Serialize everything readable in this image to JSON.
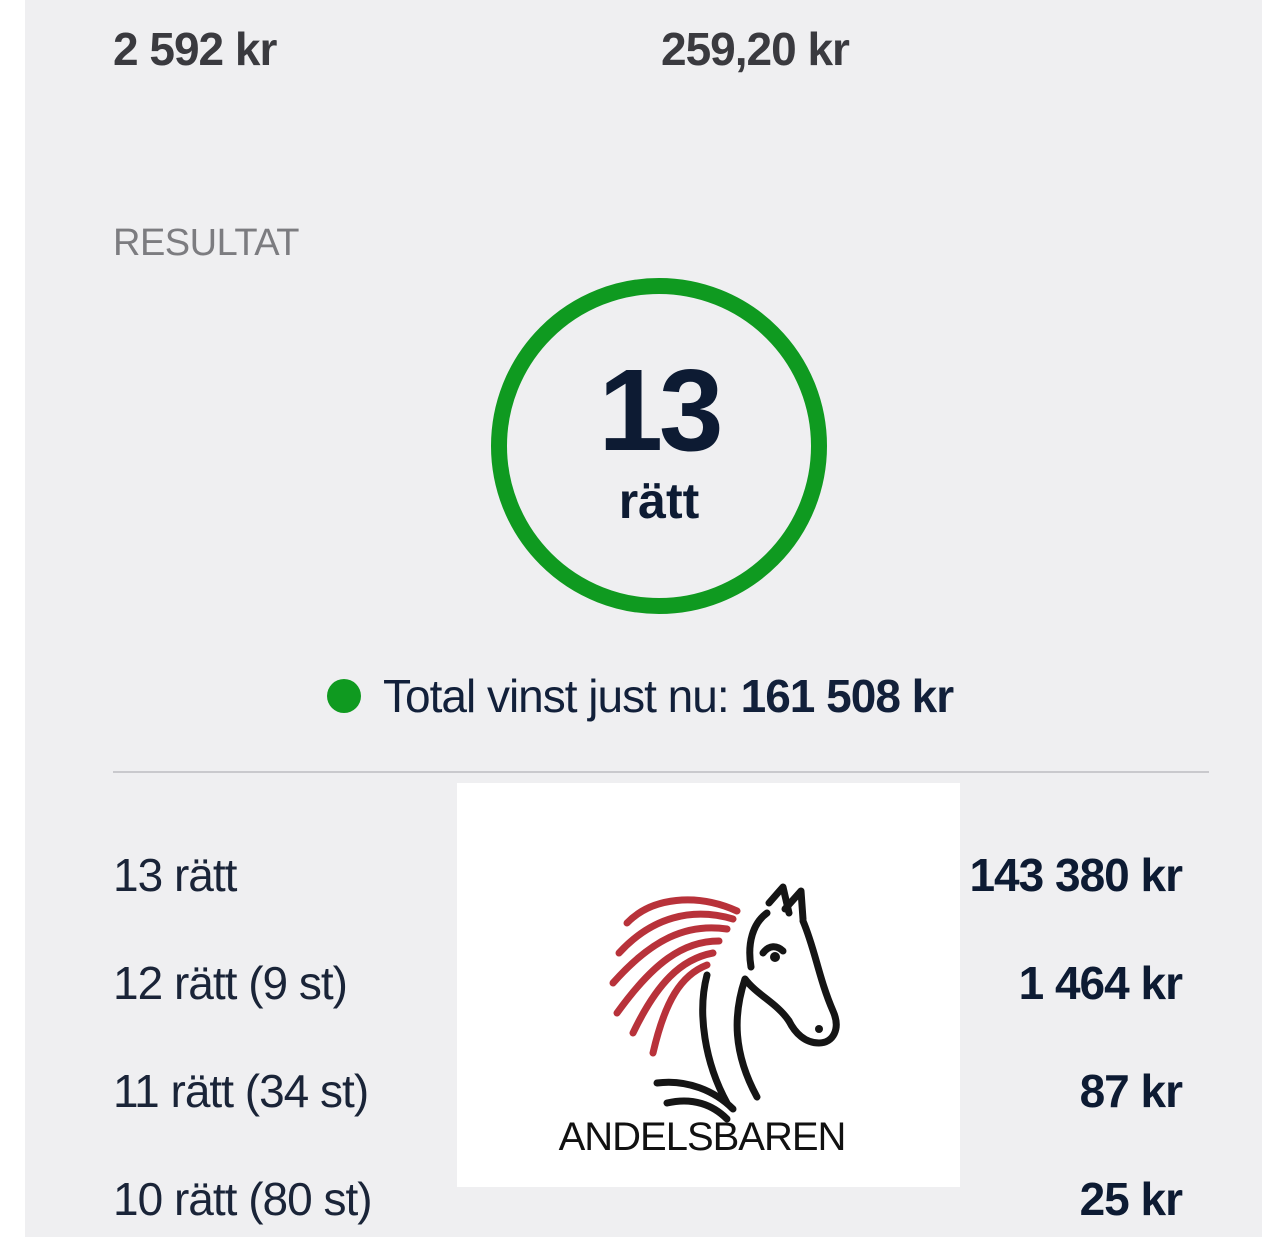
{
  "summary": {
    "left_value": "2 592 kr",
    "right_value": "259,20 kr"
  },
  "result": {
    "section_label": "RESULTAT",
    "correct_count": "13",
    "correct_unit": "rätt",
    "ring_color": "#0f9a20",
    "total_label": "Total vinst just nu:",
    "total_value": "161 508 kr",
    "status_dot_color": "#0f9a20"
  },
  "prizes": [
    {
      "label": "13 rätt",
      "amount": "143 380 kr"
    },
    {
      "label": "12 rätt (9 st)",
      "amount": "1 464 kr"
    },
    {
      "label": "11 rätt (34 st)",
      "amount": "87 kr"
    },
    {
      "label": "10 rätt (80 st)",
      "amount": "25 kr"
    }
  ],
  "watermark": {
    "icon": "horse-head-icon",
    "text": "ANDELSBAREN"
  }
}
